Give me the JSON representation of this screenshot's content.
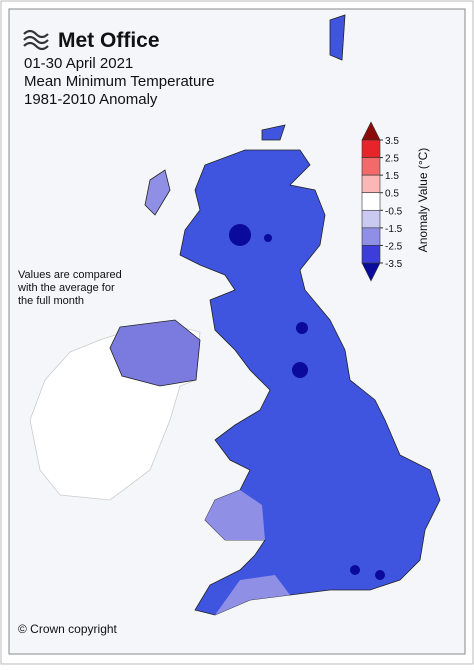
{
  "header": {
    "logo": "Met Office",
    "period": "01-30 April 2021",
    "variable": "Mean Minimum Temperature",
    "baseline": "1981-2010 Anomaly"
  },
  "note": "Values are compared with the average for the full month",
  "copyright": "© Crown copyright",
  "legend": {
    "title": "Anomaly Value (°C)",
    "ticks": [
      3.5,
      2.5,
      1.5,
      0.5,
      -0.5,
      -1.5,
      -2.5,
      -3.5
    ],
    "colors": [
      "#8b0a0a",
      "#e8232a",
      "#f46a6a",
      "#fbb6b6",
      "#ffffff",
      "#c9c9f2",
      "#8f8fe6",
      "#3d3ddb",
      "#0a0a9c"
    ]
  }
}
